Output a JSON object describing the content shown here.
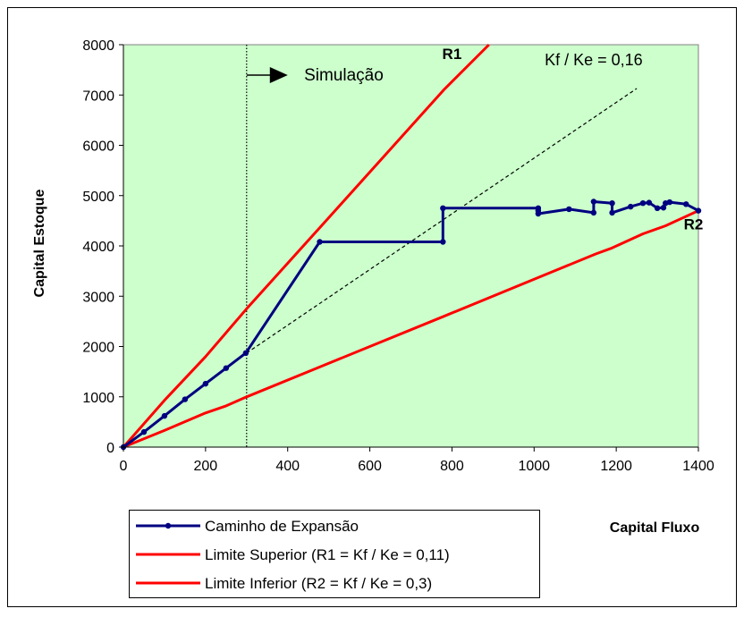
{
  "chart_data": {
    "type": "line",
    "xlabel": "Capital Fluxo",
    "ylabel": "Capital Estoque",
    "xlim": [
      0,
      1400
    ],
    "ylim": [
      0,
      8000
    ],
    "x_ticks": [
      "0",
      "200",
      "400",
      "600",
      "800",
      "1000",
      "1200",
      "1400"
    ],
    "y_ticks": [
      "0",
      "1000",
      "2000",
      "3000",
      "4000",
      "5000",
      "6000",
      "7000",
      "8000"
    ],
    "grid": false,
    "plot_background": "#ccffcc",
    "legend_position": "bottom-left",
    "series": [
      {
        "name": "Caminho de Expansão",
        "color": "#000080",
        "markers": true,
        "points": [
          [
            0,
            0
          ],
          [
            50,
            300
          ],
          [
            100,
            620
          ],
          [
            150,
            950
          ],
          [
            200,
            1260
          ],
          [
            250,
            1570
          ],
          [
            298,
            1870
          ],
          [
            478,
            4080
          ],
          [
            778,
            4080
          ],
          [
            778,
            4750
          ],
          [
            1010,
            4750
          ],
          [
            1010,
            4700
          ],
          [
            1010,
            4640
          ],
          [
            1085,
            4730
          ],
          [
            1145,
            4660
          ],
          [
            1145,
            4880
          ],
          [
            1190,
            4850
          ],
          [
            1190,
            4660
          ],
          [
            1235,
            4780
          ],
          [
            1265,
            4850
          ],
          [
            1280,
            4860
          ],
          [
            1300,
            4750
          ],
          [
            1315,
            4760
          ],
          [
            1320,
            4850
          ],
          [
            1330,
            4870
          ],
          [
            1370,
            4830
          ],
          [
            1400,
            4700
          ]
        ]
      },
      {
        "name": "Limite Superior (R1 = Kf / Ke = 0,11)",
        "color": "#ff0000",
        "markers": false,
        "points": [
          [
            0,
            0
          ],
          [
            100,
            930
          ],
          [
            200,
            1800
          ],
          [
            300,
            2750
          ],
          [
            480,
            4380
          ],
          [
            780,
            7100
          ],
          [
            890,
            8000
          ]
        ]
      },
      {
        "name": "Limite Inferior (R2 = Kf / Ke = 0,3)",
        "color": "#ff0000",
        "markers": false,
        "points": [
          [
            0,
            0
          ],
          [
            100,
            330
          ],
          [
            200,
            680
          ],
          [
            250,
            820
          ],
          [
            300,
            1000
          ],
          [
            480,
            1600
          ],
          [
            780,
            2600
          ],
          [
            1010,
            3370
          ],
          [
            1150,
            3840
          ],
          [
            1190,
            3960
          ],
          [
            1265,
            4240
          ],
          [
            1320,
            4400
          ],
          [
            1400,
            4700
          ]
        ]
      }
    ],
    "reference_lines": [
      {
        "label": "Kf / Ke = 0,16",
        "style": "dashed",
        "from": [
          300,
          1870
        ],
        "to": [
          1250,
          7130
        ]
      },
      {
        "style": "dotted",
        "x": 300
      }
    ],
    "annotations": [
      {
        "text": "R1",
        "x": 800,
        "y": 7720
      },
      {
        "text": "R2",
        "x": 1388,
        "y": 4330
      },
      {
        "text": "Kf / Ke = 0,16",
        "x": 1145,
        "y": 7590
      },
      {
        "text": "Simulação",
        "x": 440,
        "y": 7290
      }
    ]
  }
}
